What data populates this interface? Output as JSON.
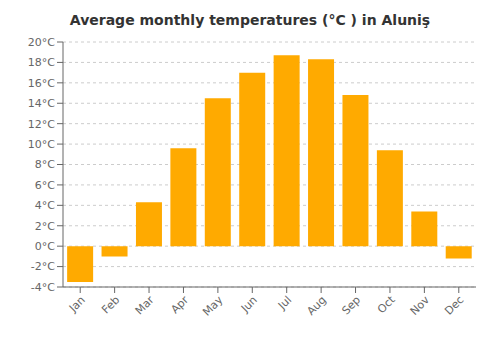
{
  "chart_data": {
    "type": "bar",
    "title": "Average monthly temperatures (°C ) in Aluniş",
    "categories": [
      "Jan",
      "Feb",
      "Mar",
      "Apr",
      "May",
      "Jun",
      "Jul",
      "Aug",
      "Sep",
      "Oct",
      "Nov",
      "Dec"
    ],
    "values": [
      -3.5,
      -1.0,
      4.3,
      9.6,
      14.5,
      17.0,
      18.7,
      18.3,
      14.8,
      9.4,
      3.4,
      -1.2
    ],
    "color": "#FFAA00",
    "ylim": [
      -4,
      20
    ],
    "yticks": [
      {
        "value": -4,
        "label": "-4°C"
      },
      {
        "value": -2,
        "label": "-2°C"
      },
      {
        "value": 0,
        "label": "0°C"
      },
      {
        "value": 2,
        "label": "2°C"
      },
      {
        "value": 4,
        "label": "4°C"
      },
      {
        "value": 6,
        "label": "6°C"
      },
      {
        "value": 8,
        "label": "8°C"
      },
      {
        "value": 10,
        "label": "10°C"
      },
      {
        "value": 12,
        "label": "12°C"
      },
      {
        "value": 14,
        "label": "14°C"
      },
      {
        "value": 16,
        "label": "16°C"
      },
      {
        "value": 18,
        "label": "18°C"
      },
      {
        "value": 20,
        "label": "20°C"
      }
    ],
    "grid": true
  }
}
